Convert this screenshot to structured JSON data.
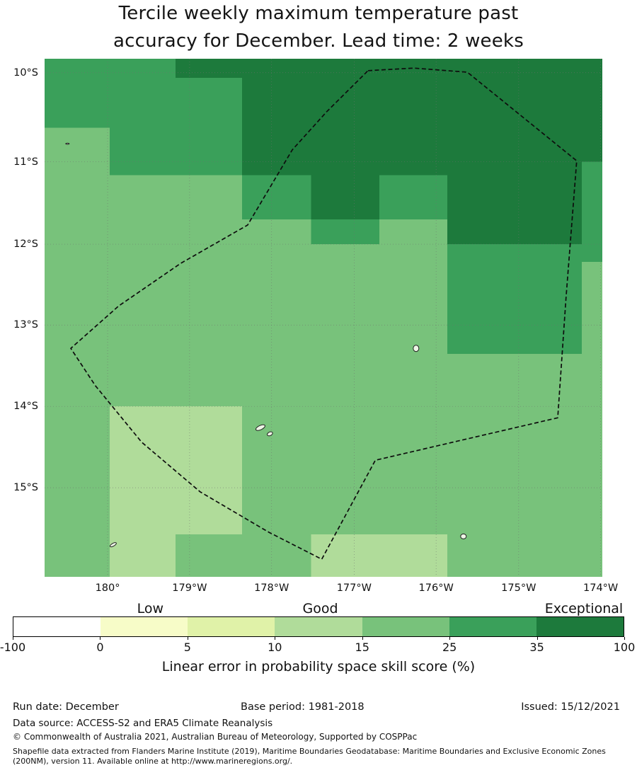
{
  "title": {
    "line1": "Tercile weekly maximum temperature past",
    "line2": "accuracy for December. Lead time: 2 weeks"
  },
  "chart_data": {
    "type": "heatmap",
    "title": "Tercile weekly maximum temperature past accuracy for December. Lead time: 2 weeks",
    "description": "Gridded map of tercile forecast skill (linear error in probability space skill score, %) with dashed EEZ boundary overlay and small islands",
    "grid": true,
    "legend_position": "bottom",
    "x_ticks": [
      {
        "label": "180°",
        "pos": 11.3
      },
      {
        "label": "179°W",
        "pos": 26.0
      },
      {
        "label": "178°W",
        "pos": 40.7
      },
      {
        "label": "177°W",
        "pos": 55.5
      },
      {
        "label": "176°W",
        "pos": 70.2
      },
      {
        "label": "175°W",
        "pos": 85.0
      },
      {
        "label": "174°W",
        "pos": 99.7
      }
    ],
    "y_ticks": [
      {
        "label": "10°S",
        "pos": 2.7
      },
      {
        "label": "11°S",
        "pos": 19.9
      },
      {
        "label": "12°S",
        "pos": 35.8
      },
      {
        "label": "13°S",
        "pos": 51.4
      },
      {
        "label": "14°S",
        "pos": 67.1
      },
      {
        "label": "15°S",
        "pos": 82.8
      }
    ],
    "bins": {
      "-100-0": "#ffffff",
      "0-5": "#f7fcc8",
      "5-10": "#e0f2a8",
      "10-15": "#b0dc9a",
      "15-25": "#78c27b",
      "25-35": "#3aa05a",
      "35-100": "#1d7a3c"
    },
    "cells": [
      {
        "x": 0,
        "y": 0,
        "w": 23.5,
        "h": 3.7,
        "bin": "25-35"
      },
      {
        "x": 23.5,
        "y": 0,
        "w": 76.5,
        "h": 3.7,
        "bin": "35-100"
      },
      {
        "x": 0,
        "y": 3.7,
        "w": 35.4,
        "h": 9.6,
        "bin": "25-35"
      },
      {
        "x": 35.4,
        "y": 3.7,
        "w": 64.6,
        "h": 9.6,
        "bin": "35-100"
      },
      {
        "x": 0,
        "y": 13.3,
        "w": 11.7,
        "h": 9.2,
        "bin": "15-25"
      },
      {
        "x": 11.7,
        "y": 13.3,
        "w": 23.7,
        "h": 9.2,
        "bin": "25-35"
      },
      {
        "x": 35.4,
        "y": 13.3,
        "w": 64.6,
        "h": 9.2,
        "bin": "35-100"
      },
      {
        "x": 0,
        "y": 22.5,
        "w": 35.4,
        "h": 8.5,
        "bin": "15-25"
      },
      {
        "x": 35.4,
        "y": 22.5,
        "w": 12.4,
        "h": 8.5,
        "bin": "25-35"
      },
      {
        "x": 47.8,
        "y": 22.5,
        "w": 12.2,
        "h": 8.5,
        "bin": "35-100"
      },
      {
        "x": 60.0,
        "y": 22.5,
        "w": 12.2,
        "h": 8.5,
        "bin": "25-35"
      },
      {
        "x": 72.2,
        "y": 22.5,
        "w": 27.8,
        "h": 8.5,
        "bin": "35-100"
      },
      {
        "x": 0,
        "y": 31.0,
        "w": 47.8,
        "h": 4.8,
        "bin": "15-25"
      },
      {
        "x": 47.8,
        "y": 31.0,
        "w": 12.2,
        "h": 4.8,
        "bin": "25-35"
      },
      {
        "x": 60.0,
        "y": 31.0,
        "w": 12.2,
        "h": 4.8,
        "bin": "15-25"
      },
      {
        "x": 72.2,
        "y": 31.0,
        "w": 27.8,
        "h": 4.8,
        "bin": "35-100"
      },
      {
        "x": 0,
        "y": 35.8,
        "w": 72.2,
        "h": 3.4,
        "bin": "15-25"
      },
      {
        "x": 72.2,
        "y": 35.8,
        "w": 27.8,
        "h": 3.4,
        "bin": "25-35"
      },
      {
        "x": 0,
        "y": 39.2,
        "w": 72.2,
        "h": 17.8,
        "bin": "15-25"
      },
      {
        "x": 72.2,
        "y": 39.2,
        "w": 24.1,
        "h": 17.8,
        "bin": "25-35"
      },
      {
        "x": 96.3,
        "y": 39.2,
        "w": 3.7,
        "h": 17.8,
        "bin": "15-25"
      },
      {
        "x": 0,
        "y": 57.0,
        "w": 100,
        "h": 10.1,
        "bin": "15-25"
      },
      {
        "x": 0,
        "y": 67.1,
        "w": 11.7,
        "h": 24.7,
        "bin": "15-25"
      },
      {
        "x": 11.7,
        "y": 67.1,
        "w": 23.7,
        "h": 24.7,
        "bin": "10-15"
      },
      {
        "x": 35.4,
        "y": 67.1,
        "w": 64.6,
        "h": 24.7,
        "bin": "15-25"
      },
      {
        "x": 0,
        "y": 91.8,
        "w": 11.7,
        "h": 8.2,
        "bin": "15-25"
      },
      {
        "x": 11.7,
        "y": 91.8,
        "w": 11.8,
        "h": 8.2,
        "bin": "10-15"
      },
      {
        "x": 23.5,
        "y": 91.8,
        "w": 24.3,
        "h": 8.2,
        "bin": "15-25"
      },
      {
        "x": 47.8,
        "y": 91.8,
        "w": 24.4,
        "h": 8.2,
        "bin": "10-15"
      },
      {
        "x": 72.2,
        "y": 91.8,
        "w": 27.8,
        "h": 8.2,
        "bin": "15-25"
      },
      {
        "x": 96.3,
        "y": 19.9,
        "w": 3.7,
        "h": 19.3,
        "bin": "25-35"
      }
    ],
    "eez_boundary": [
      [
        58.0,
        2.3
      ],
      [
        66.2,
        1.8
      ],
      [
        75.8,
        2.6
      ],
      [
        95.4,
        19.7
      ],
      [
        93.5,
        46.0
      ],
      [
        92.0,
        69.3
      ],
      [
        59.3,
        77.5
      ],
      [
        49.7,
        96.6
      ],
      [
        40.2,
        91.4
      ],
      [
        27.9,
        83.6
      ],
      [
        17.4,
        74.0
      ],
      [
        9.1,
        63.1
      ],
      [
        4.7,
        55.9
      ],
      [
        13.3,
        47.7
      ],
      [
        24.4,
        39.5
      ],
      [
        36.4,
        32.1
      ],
      [
        44.4,
        17.6
      ],
      [
        50.6,
        10.2
      ]
    ],
    "islands": [
      {
        "cx": 66.6,
        "cy": 55.9,
        "rx": 4,
        "ry": 4.5,
        "rot": 0
      },
      {
        "cx": 38.7,
        "cy": 71.2,
        "rx": 7,
        "ry": 3,
        "rot": -25
      },
      {
        "cx": 40.4,
        "cy": 72.4,
        "rx": 4,
        "ry": 2.5,
        "rot": -25
      },
      {
        "cx": 12.3,
        "cy": 93.8,
        "rx": 5,
        "ry": 2,
        "rot": -30
      },
      {
        "cx": 75.1,
        "cy": 92.2,
        "rx": 4,
        "ry": 3.5,
        "rot": 0
      },
      {
        "cx": 4.1,
        "cy": 16.4,
        "rx": 2.5,
        "ry": 0.8,
        "rot": 0
      }
    ],
    "colorbar": {
      "segments": [
        "-100-0",
        "0-5",
        "5-10",
        "10-15",
        "15-25",
        "25-35",
        "35-100"
      ],
      "ticks": [
        "-100",
        "0",
        "5",
        "10",
        "15",
        "25",
        "35",
        "100"
      ],
      "labels": [
        {
          "text": "Low",
          "pos": 22.5
        },
        {
          "text": "Good",
          "pos": 50.3
        },
        {
          "text": "Exceptional",
          "pos": 93.4
        }
      ],
      "caption": "Linear error in probability space skill score (%)"
    }
  },
  "footer": {
    "run_date": "Run date: December",
    "base_period": "Base period: 1981-2018",
    "issued": "Issued: 15/12/2021",
    "data_source": "Data source: ACCESS-S2 and ERA5 Climate Reanalysis",
    "copyright": "© Commonwealth of Australia 2021, Australian Bureau of Meteorology, Supported by COSPPac",
    "shapefile_note": "Shapefile data extracted from Flanders Marine Institute (2019), Maritime Boundaries Geodatabase: Maritime Boundaries and Exclusive Economic Zones (200NM), version 11. Available online at http://www.marineregions.org/."
  }
}
